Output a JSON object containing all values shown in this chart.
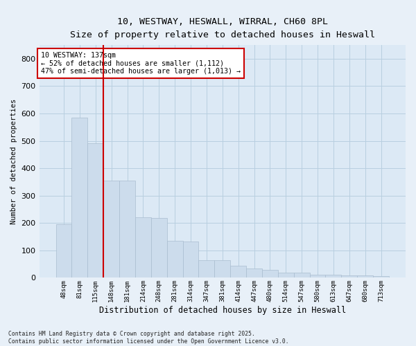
{
  "title_line1": "10, WESTWAY, HESWALL, WIRRAL, CH60 8PL",
  "title_line2": "Size of property relative to detached houses in Heswall",
  "xlabel": "Distribution of detached houses by size in Heswall",
  "ylabel": "Number of detached properties",
  "categories": [
    "48sqm",
    "81sqm",
    "115sqm",
    "148sqm",
    "181sqm",
    "214sqm",
    "248sqm",
    "281sqm",
    "314sqm",
    "347sqm",
    "381sqm",
    "414sqm",
    "447sqm",
    "480sqm",
    "514sqm",
    "547sqm",
    "580sqm",
    "613sqm",
    "647sqm",
    "680sqm",
    "713sqm"
  ],
  "values": [
    195,
    585,
    490,
    355,
    355,
    220,
    218,
    135,
    133,
    65,
    63,
    45,
    35,
    28,
    18,
    18,
    12,
    10,
    8,
    8,
    7
  ],
  "bar_color": "#ccdcec",
  "bar_edge_color": "#aabdd0",
  "vline_x": 2.5,
  "vline_color": "#cc0000",
  "annotation_text": "10 WESTWAY: 137sqm\n← 52% of detached houses are smaller (1,112)\n47% of semi-detached houses are larger (1,013) →",
  "annotation_box_color": "#ffffff",
  "annotation_box_edge": "#cc0000",
  "footnote": "Contains HM Land Registry data © Crown copyright and database right 2025.\nContains public sector information licensed under the Open Government Licence v3.0.",
  "ylim": [
    0,
    850
  ],
  "yticks": [
    0,
    100,
    200,
    300,
    400,
    500,
    600,
    700,
    800
  ],
  "grid_color": "#b8cfe0",
  "plot_bg_color": "#dce9f5",
  "fig_bg_color": "#e8f0f8"
}
